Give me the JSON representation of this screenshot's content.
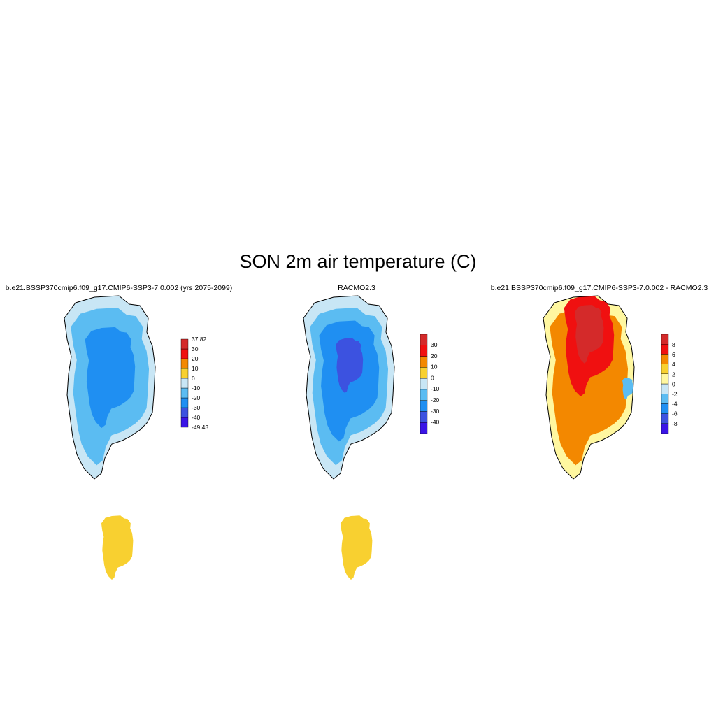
{
  "figure": {
    "title": "SON 2m air temperature (C)"
  },
  "chart_data": [
    {
      "type": "heatmap",
      "title": "b.e21.BSSP370cmip6.f09_g17.CMIP6-SSP3-7.0.002 (yrs 2075-2099)",
      "variable": "SON 2m air temperature",
      "units": "C",
      "region": "Greenland",
      "colorbar": {
        "levels": [
          -40,
          -30,
          -20,
          -10,
          0,
          10,
          20,
          30
        ],
        "tick_labels": [
          "37.82",
          "30",
          "20",
          "10",
          "0",
          "-10",
          "-20",
          "-30",
          "-40",
          "-49.43"
        ],
        "min": -49.43,
        "max": 37.82,
        "colors": [
          "#3a14e6",
          "#3c52e0",
          "#1f8ff2",
          "#5bbcf2",
          "#c8e6f5",
          "#f8d030",
          "#f38800",
          "#f01010",
          "#d42a2a"
        ]
      },
      "field_summary": {
        "interior_max_range": [
          -30,
          -20
        ],
        "coastal_range": [
          -20,
          -10
        ],
        "southern_coast_range": [
          0,
          10
        ]
      }
    },
    {
      "type": "heatmap",
      "title": "RACMO2.3",
      "variable": "SON 2m air temperature",
      "units": "C",
      "region": "Greenland",
      "colorbar": {
        "levels": [
          -40,
          -30,
          -20,
          -10,
          0,
          10,
          20,
          30
        ],
        "tick_labels": [
          "30",
          "20",
          "10",
          "0",
          "-10",
          "-20",
          "-30",
          "-40"
        ],
        "colors": [
          "#3a14e6",
          "#3c52e0",
          "#1f8ff2",
          "#5bbcf2",
          "#c8e6f5",
          "#f8d030",
          "#f38800",
          "#f01010",
          "#d42a2a"
        ]
      },
      "field_summary": {
        "interior_max_range": [
          -40,
          -30
        ],
        "coastal_range": [
          -20,
          -10
        ],
        "southern_coast_range": [
          0,
          10
        ]
      }
    },
    {
      "type": "heatmap",
      "title": "b.e21.BSSP370cmip6.f09_g17.CMIP6-SSP3-7.0.002 - RACMO2.3",
      "variable": "SON 2m air temperature difference",
      "units": "C",
      "region": "Greenland",
      "colorbar": {
        "levels": [
          -8,
          -6,
          -4,
          -2,
          0,
          2,
          4,
          6,
          8
        ],
        "tick_labels": [
          "8",
          "6",
          "4",
          "2",
          "0",
          "-2",
          "-4",
          "-6",
          "-8"
        ],
        "colors": [
          "#3a14e6",
          "#3c52e0",
          "#1f8ff2",
          "#5bbcf2",
          "#c8e6f5",
          "#fff7a0",
          "#f8d030",
          "#f38800",
          "#f01010",
          "#d42a2a"
        ]
      },
      "field_summary": {
        "north_range": [
          6,
          8
        ],
        "interior_range": [
          4,
          6
        ],
        "southern_coast_range": [
          0,
          4
        ]
      }
    }
  ]
}
